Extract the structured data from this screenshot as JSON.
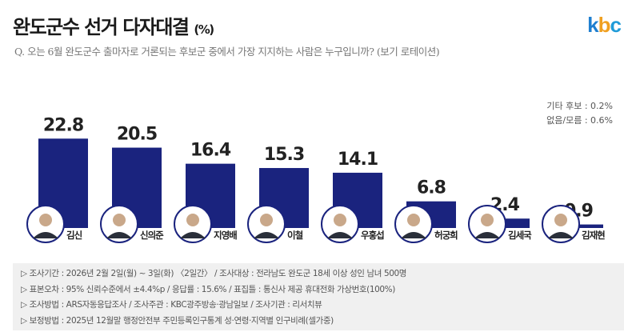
{
  "header": {
    "title": "완도군수 선거 다자대결",
    "title_unit": "(%)",
    "logo": "kbc",
    "question": "Q. 오는 6월 완도군수 출마자로 거론되는 후보군 중에서 가장 지지하는 사람은 누구입니까? (보기 로테이션)"
  },
  "others": [
    "기타 후보 : 0.2%",
    "없음/모름 : 0.6%"
  ],
  "notes": [
    "▷ 조사기간 : 2026년 2월 2일(월) ~ 3일(화) 〈2일간〉 / 조사대상 : 전라남도 완도군 18세 이상 성인 남녀 500명",
    "▷ 표본오차 : 95% 신뢰수준에서 ±4.4%p / 응답률 : 15.6% / 표집틀 : 통신사 제공 휴대전화 가상번호(100%)",
    "▷ 조사방법 : ARS자동응답조사 / 조사주관 : KBC광주방송·광남일보 / 조사기관 : 리서치뷰",
    "▷ 보정방법 : 2025년 12월말 행정안전부 주민등록인구통계 성·연령·지역별 인구비례(셀가중)"
  ],
  "colors": {
    "bar": "#1a237e"
  },
  "chart_data": {
    "type": "bar",
    "title": "완도군수 선거 다자대결 (%)",
    "categories": [
      "김신",
      "신의준",
      "지영배",
      "이철",
      "우홍섭",
      "허궁희",
      "김세국",
      "김재현"
    ],
    "values": [
      22.8,
      20.5,
      16.4,
      15.3,
      14.1,
      6.8,
      2.4,
      0.9
    ],
    "labels": [
      "22.8",
      "20.5",
      "16.4",
      "15.3",
      "14.1",
      "6.8",
      "2.4",
      "0.9"
    ],
    "ylim": [
      0,
      25
    ],
    "xlabel": "",
    "ylabel": "",
    "grid": false
  }
}
